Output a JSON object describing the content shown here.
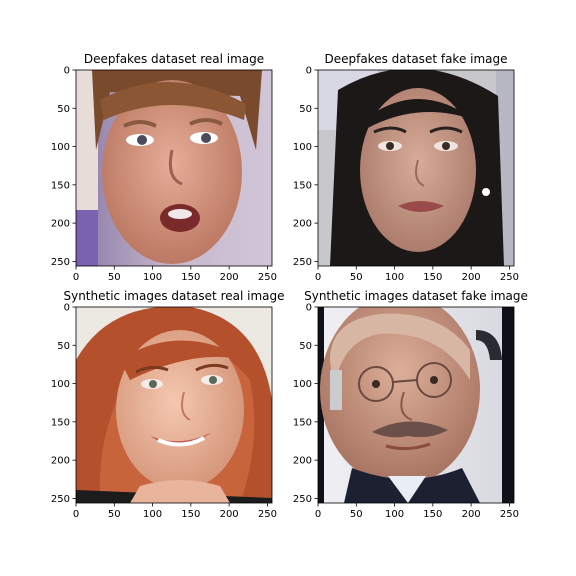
{
  "panels": [
    {
      "title": "Deepfakes dataset real image",
      "x_ticks": [
        "0",
        "50",
        "100",
        "150",
        "200",
        "250"
      ],
      "y_ticks": [
        "0",
        "50",
        "100",
        "150",
        "200",
        "250"
      ],
      "image": {
        "subject": "young man with blond hair, mouth open",
        "background": "#b8b0c8",
        "skin": "#d89a86",
        "hair": "#7a4a2c"
      }
    },
    {
      "title": "Deepfakes dataset fake image",
      "x_ticks": [
        "0",
        "50",
        "100",
        "150",
        "200",
        "250"
      ],
      "y_ticks": [
        "0",
        "50",
        "100",
        "150",
        "200",
        "250"
      ],
      "image": {
        "subject": "woman with long dark hair",
        "background": "#c8c8cc",
        "skin": "#c99a86",
        "hair": "#1c1818"
      }
    },
    {
      "title": "Synthetic images dataset real image",
      "x_ticks": [
        "0",
        "50",
        "100",
        "150",
        "200",
        "250"
      ],
      "y_ticks": [
        "0",
        "50",
        "100",
        "150",
        "200",
        "250"
      ],
      "image": {
        "subject": "smiling woman with auburn hair",
        "background": "#ece8e2",
        "skin": "#e8b49c",
        "hair": "#b4502c"
      }
    },
    {
      "title": "Synthetic images dataset fake image",
      "x_ticks": [
        "0",
        "50",
        "100",
        "150",
        "200",
        "250"
      ],
      "y_ticks": [
        "0",
        "50",
        "100",
        "150",
        "200",
        "250"
      ],
      "image": {
        "subject": "bald older man with glasses and moustache",
        "background": "#e4e4ea",
        "skin": "#c89880",
        "hair": "#6a5048"
      }
    }
  ]
}
